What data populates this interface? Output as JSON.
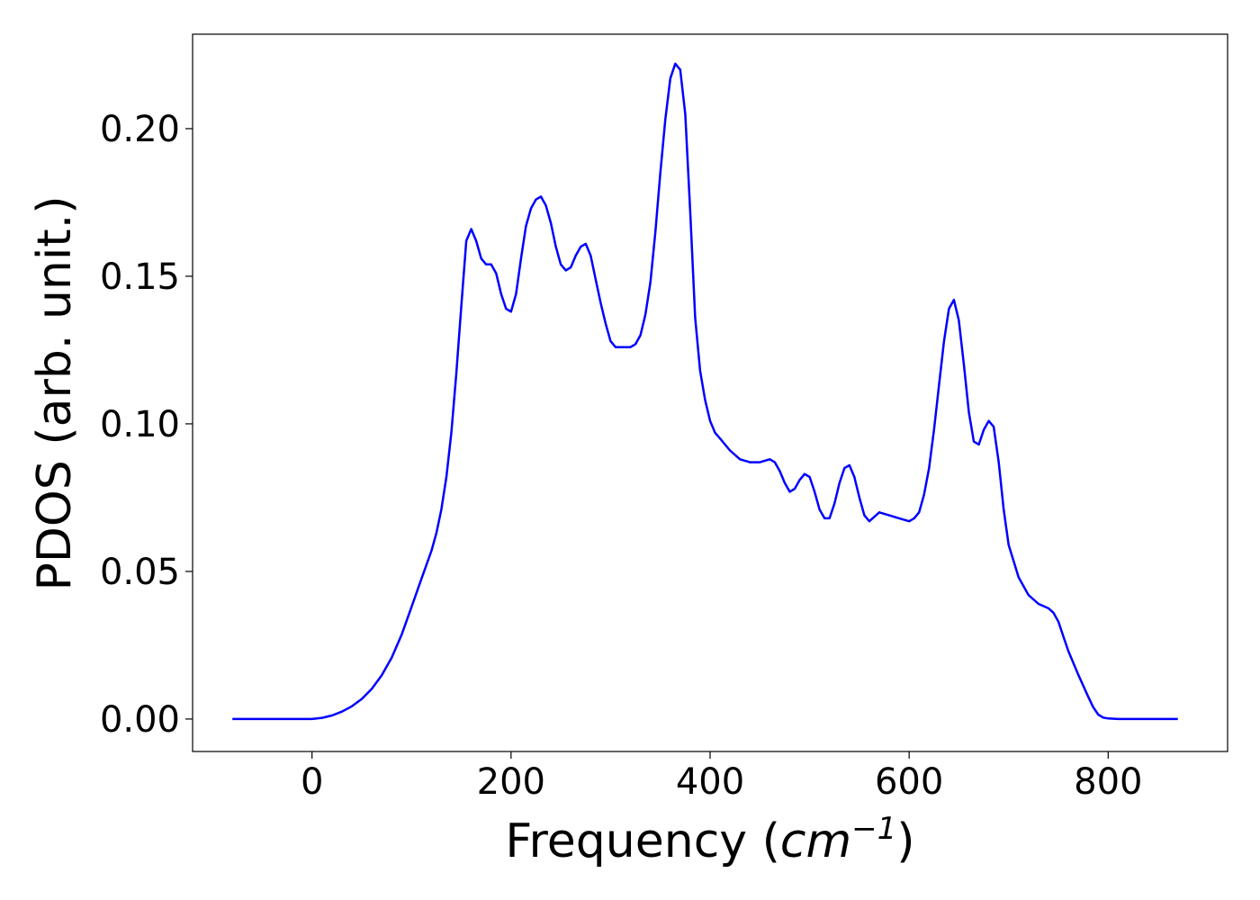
{
  "chart_data": {
    "type": "line",
    "xlabel": "Frequency",
    "xlabel_unit_base": "cm",
    "xlabel_unit_exponent": "−1",
    "ylabel": "PDOS (arb. unit.)",
    "xlim": [
      -120,
      920
    ],
    "ylim": [
      -0.011,
      0.232
    ],
    "xticks": [
      0,
      200,
      400,
      600,
      800
    ],
    "xtick_labels": [
      "0",
      "200",
      "400",
      "600",
      "800"
    ],
    "yticks": [
      0.0,
      0.05,
      0.1,
      0.15,
      0.2
    ],
    "ytick_labels": [
      "0.00",
      "0.05",
      "0.10",
      "0.15",
      "0.20"
    ],
    "grid": false,
    "line_color": "#0000ff",
    "series": [
      {
        "x": [
          -80,
          -40,
          0,
          10,
          20,
          30,
          40,
          50,
          60,
          70,
          80,
          90,
          100,
          110,
          120,
          125,
          130,
          135,
          140,
          145,
          150,
          155,
          160,
          165,
          170,
          175,
          180,
          185,
          190,
          195,
          200,
          205,
          210,
          215,
          220,
          225,
          230,
          235,
          240,
          245,
          250,
          255,
          260,
          265,
          270,
          275,
          280,
          285,
          290,
          295,
          300,
          305,
          310,
          315,
          320,
          325,
          330,
          335,
          340,
          345,
          350,
          355,
          360,
          365,
          370,
          375,
          380,
          385,
          390,
          395,
          400,
          405,
          410,
          420,
          430,
          440,
          450,
          460,
          465,
          470,
          475,
          480,
          485,
          490,
          495,
          500,
          505,
          510,
          515,
          520,
          525,
          530,
          535,
          540,
          545,
          550,
          555,
          560,
          570,
          580,
          590,
          600,
          605,
          610,
          615,
          620,
          625,
          630,
          635,
          640,
          645,
          650,
          655,
          660,
          665,
          670,
          675,
          680,
          685,
          690,
          695,
          700,
          710,
          720,
          730,
          740,
          745,
          750,
          755,
          760,
          770,
          780,
          785,
          790,
          795,
          800,
          810,
          820,
          840,
          870
        ],
        "y": [
          0.0,
          0.0,
          0.0,
          0.0004,
          0.0012,
          0.0025,
          0.0043,
          0.0068,
          0.0102,
          0.0148,
          0.0208,
          0.0285,
          0.038,
          0.0475,
          0.057,
          0.063,
          0.071,
          0.082,
          0.097,
          0.117,
          0.14,
          0.162,
          0.166,
          0.162,
          0.156,
          0.154,
          0.154,
          0.151,
          0.144,
          0.139,
          0.138,
          0.144,
          0.156,
          0.167,
          0.173,
          0.176,
          0.177,
          0.174,
          0.168,
          0.16,
          0.154,
          0.152,
          0.153,
          0.157,
          0.16,
          0.161,
          0.157,
          0.149,
          0.141,
          0.134,
          0.128,
          0.126,
          0.126,
          0.126,
          0.126,
          0.127,
          0.13,
          0.137,
          0.148,
          0.165,
          0.185,
          0.203,
          0.217,
          0.222,
          0.22,
          0.205,
          0.172,
          0.136,
          0.118,
          0.108,
          0.101,
          0.097,
          0.095,
          0.091,
          0.088,
          0.087,
          0.087,
          0.088,
          0.087,
          0.084,
          0.08,
          0.077,
          0.078,
          0.081,
          0.083,
          0.082,
          0.077,
          0.071,
          0.068,
          0.068,
          0.073,
          0.08,
          0.085,
          0.086,
          0.082,
          0.075,
          0.069,
          0.067,
          0.07,
          0.069,
          0.068,
          0.067,
          0.068,
          0.07,
          0.076,
          0.085,
          0.098,
          0.113,
          0.128,
          0.139,
          0.142,
          0.135,
          0.12,
          0.104,
          0.094,
          0.093,
          0.098,
          0.101,
          0.099,
          0.087,
          0.071,
          0.059,
          0.048,
          0.042,
          0.039,
          0.0375,
          0.036,
          0.033,
          0.028,
          0.023,
          0.015,
          0.0075,
          0.004,
          0.0015,
          0.0005,
          0.0002,
          0.0,
          0.0,
          0.0,
          0.0
        ]
      }
    ]
  }
}
